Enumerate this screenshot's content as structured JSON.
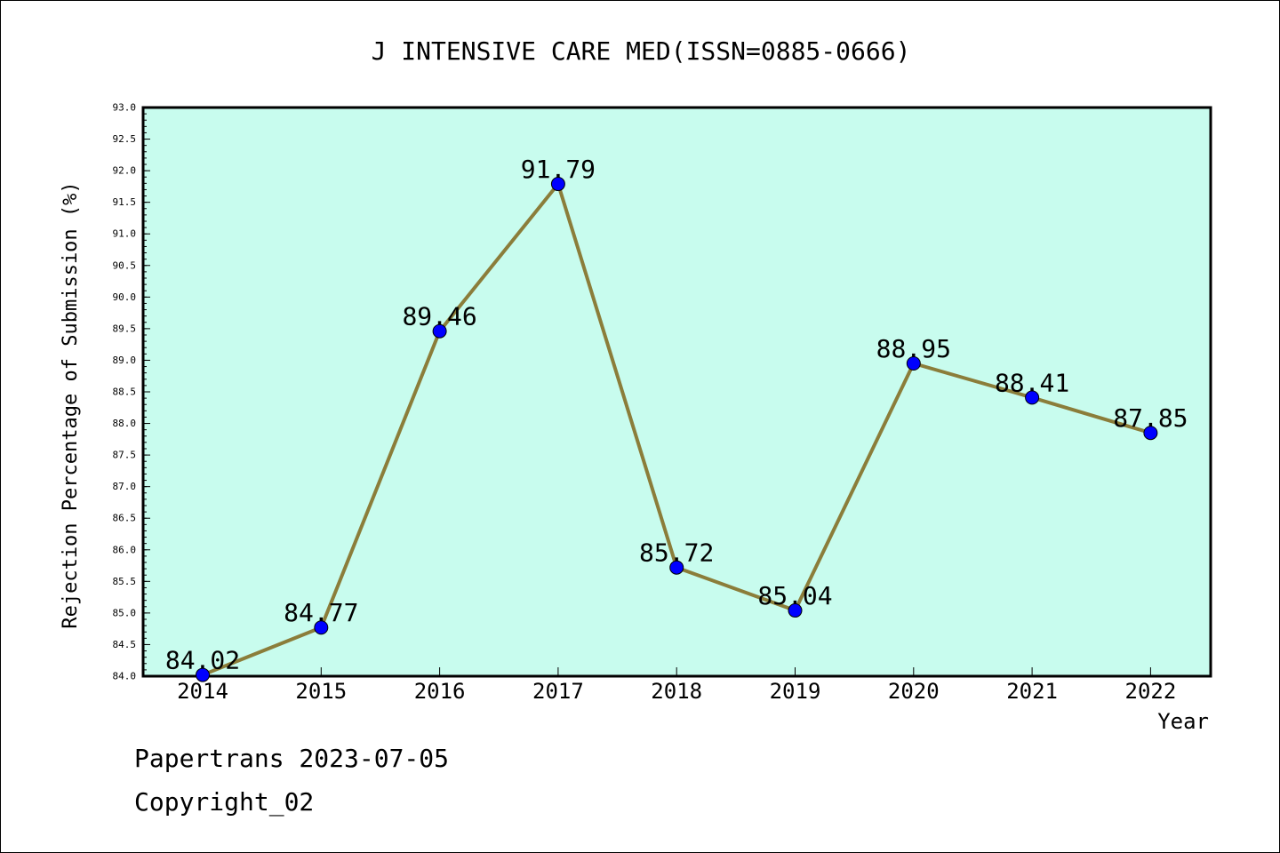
{
  "chart_data": {
    "type": "line",
    "title": "J INTENSIVE CARE MED(ISSN=0885-0666)",
    "xlabel": "Year",
    "ylabel": "Rejection Percentage of Submission (%)",
    "categories": [
      "2014",
      "2015",
      "2016",
      "2017",
      "2018",
      "2019",
      "2020",
      "2021",
      "2022"
    ],
    "series": [
      {
        "values": [
          84.02,
          84.77,
          89.46,
          91.79,
          85.72,
          85.04,
          88.95,
          88.41,
          87.85
        ]
      }
    ],
    "data_labels": [
      "84.02",
      "84.77",
      "89.46",
      "91.79",
      "85.72",
      "85.04",
      "88.95",
      "88.41",
      "87.85"
    ],
    "ylim": [
      84.0,
      93.0
    ],
    "yticks": [
      "84.0",
      "84.5",
      "85.0",
      "85.5",
      "86.0",
      "86.5",
      "87.0",
      "87.5",
      "88.0",
      "88.5",
      "89.0",
      "89.5",
      "90.0",
      "90.5",
      "91.0",
      "91.5",
      "92.0",
      "92.5",
      "93.0"
    ],
    "grid": false,
    "colors": {
      "plot_background": "#c8fcee",
      "line": "#8b7d3a",
      "marker": "#0000ff"
    }
  },
  "footer": {
    "line1": "Papertrans 2023-07-05",
    "line2": "Copyright_02"
  }
}
